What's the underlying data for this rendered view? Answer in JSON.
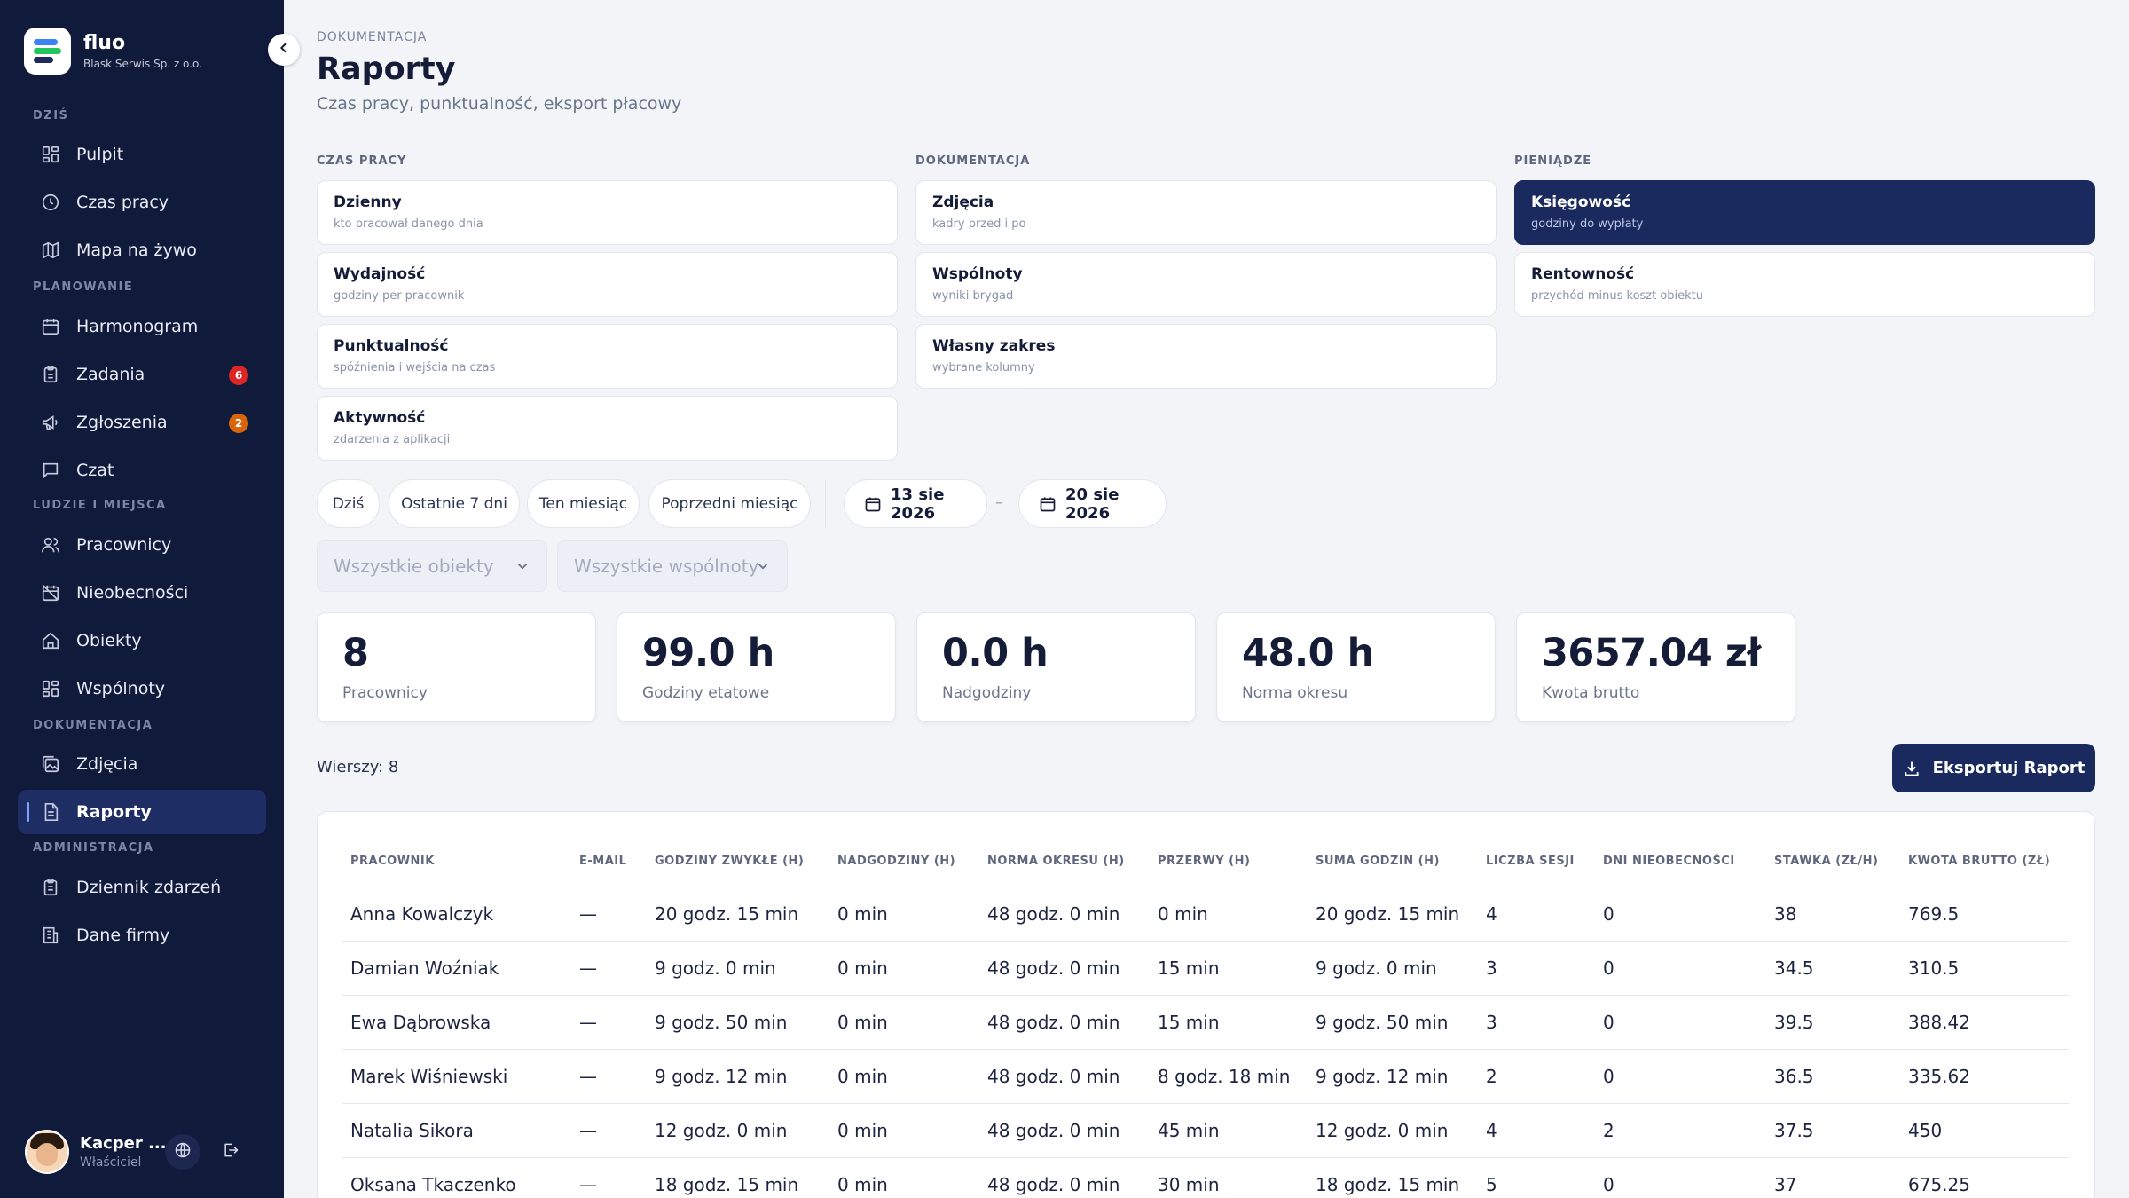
{
  "brand": {
    "name": "fluo",
    "company": "Blask Serwis Sp. z o.o."
  },
  "sidebar": {
    "sections": {
      "today": "DZIŚ",
      "planning": "PLANOWANIE",
      "people": "LUDZIE I MIEJSCA",
      "docs": "DOKUMENTACJA",
      "admin": "ADMINISTRACJA"
    },
    "items": [
      {
        "label": "Pulpit",
        "icon": "grid-icon"
      },
      {
        "label": "Czas pracy",
        "icon": "clock-icon"
      },
      {
        "label": "Mapa na żywo",
        "icon": "map-icon"
      },
      {
        "label": "Harmonogram",
        "icon": "calendar-icon"
      },
      {
        "label": "Zadania",
        "icon": "clipboard-icon",
        "badge": "6",
        "badge_color": "#dc2626"
      },
      {
        "label": "Zgłoszenia",
        "icon": "megaphone-icon",
        "badge": "2",
        "badge_color": "#d9650b"
      },
      {
        "label": "Czat",
        "icon": "chat-icon"
      },
      {
        "label": "Pracownicy",
        "icon": "users-icon"
      },
      {
        "label": "Nieobecności",
        "icon": "calendar-off-icon"
      },
      {
        "label": "Obiekty",
        "icon": "home-icon"
      },
      {
        "label": "Wspólnoty",
        "icon": "grid-icon"
      },
      {
        "label": "Zdjęcia",
        "icon": "images-icon"
      },
      {
        "label": "Raporty",
        "icon": "document-icon",
        "active": true
      },
      {
        "label": "Dziennik zdarzeń",
        "icon": "clipboard-list-icon"
      },
      {
        "label": "Dane firmy",
        "icon": "building-icon"
      }
    ],
    "user": {
      "name": "Kacper ...",
      "role": "Właściciel"
    }
  },
  "page": {
    "breadcrumb": "DOKUMENTACJA",
    "title": "Raporty",
    "subtitle": "Czas pracy, punktualność, eksport płacowy"
  },
  "report_groups": [
    {
      "title": "CZAS PRACY",
      "cards": [
        {
          "title": "Dzienny",
          "desc": "kto pracował danego dnia"
        },
        {
          "title": "Wydajność",
          "desc": "godziny per pracownik"
        },
        {
          "title": "Punktualność",
          "desc": "spóźnienia i wejścia na czas"
        },
        {
          "title": "Aktywność",
          "desc": "zdarzenia z aplikacji"
        }
      ]
    },
    {
      "title": "DOKUMENTACJA",
      "cards": [
        {
          "title": "Zdjęcia",
          "desc": "kadry przed i po"
        },
        {
          "title": "Wspólnoty",
          "desc": "wyniki brygad"
        },
        {
          "title": "Własny zakres",
          "desc": "wybrane kolumny"
        }
      ]
    },
    {
      "title": "PIENIĄDZE",
      "cards": [
        {
          "title": "Księgowość",
          "desc": "godziny do wypłaty",
          "selected": true
        },
        {
          "title": "Rentowność",
          "desc": "przychód minus koszt obiektu"
        }
      ]
    }
  ],
  "filters": {
    "quick": [
      "Dziś",
      "Ostatnie 7 dni",
      "Ten miesiąc",
      "Poprzedni miesiąc"
    ],
    "date_from": "13 sie 2026",
    "date_to": "20 sie 2026",
    "date_separator": "–",
    "objects_placeholder": "Wszystkie obiekty",
    "communities_placeholder": "Wszystkie wspólnoty"
  },
  "stats": [
    {
      "value": "8",
      "label": "Pracownicy"
    },
    {
      "value": "99.0 h",
      "label": "Godziny etatowe"
    },
    {
      "value": "0.0 h",
      "label": "Nadgodziny"
    },
    {
      "value": "48.0 h",
      "label": "Norma okresu"
    },
    {
      "value": "3657.04 zł",
      "label": "Kwota brutto"
    }
  ],
  "table": {
    "rows_count": "Wierszy: 8",
    "export_label": "Eksportuj Raport",
    "columns": [
      "PRACOWNIK",
      "E-MAIL",
      "GODZINY ZWYKŁE (H)",
      "NADGODZINY (H)",
      "NORMA OKRESU (H)",
      "PRZERWY (H)",
      "SUMA GODZIN (H)",
      "LICZBA SESJI",
      "DNI NIEOBECNOŚCI",
      "STAWKA (ZŁ/H)",
      "KWOTA BRUTTO (ZŁ)"
    ],
    "rows": [
      [
        "Anna Kowalczyk",
        "—",
        "20 godz. 15 min",
        "0 min",
        "48 godz. 0 min",
        "0 min",
        "20 godz. 15 min",
        "4",
        "0",
        "38",
        "769.5"
      ],
      [
        "Damian Woźniak",
        "—",
        "9 godz. 0 min",
        "0 min",
        "48 godz. 0 min",
        "15 min",
        "9 godz. 0 min",
        "3",
        "0",
        "34.5",
        "310.5"
      ],
      [
        "Ewa Dąbrowska",
        "—",
        "9 godz. 50 min",
        "0 min",
        "48 godz. 0 min",
        "15 min",
        "9 godz. 50 min",
        "3",
        "0",
        "39.5",
        "388.42"
      ],
      [
        "Marek Wiśniewski",
        "—",
        "9 godz. 12 min",
        "0 min",
        "48 godz. 0 min",
        "8 godz. 18 min",
        "9 godz. 12 min",
        "2",
        "0",
        "36.5",
        "335.62"
      ],
      [
        "Natalia Sikora",
        "—",
        "12 godz. 0 min",
        "0 min",
        "48 godz. 0 min",
        "45 min",
        "12 godz. 0 min",
        "4",
        "2",
        "37.5",
        "450"
      ],
      [
        "Oksana Tkaczenko",
        "—",
        "18 godz. 15 min",
        "0 min",
        "48 godz. 0 min",
        "30 min",
        "18 godz. 15 min",
        "5",
        "0",
        "37",
        "675.25"
      ]
    ]
  }
}
